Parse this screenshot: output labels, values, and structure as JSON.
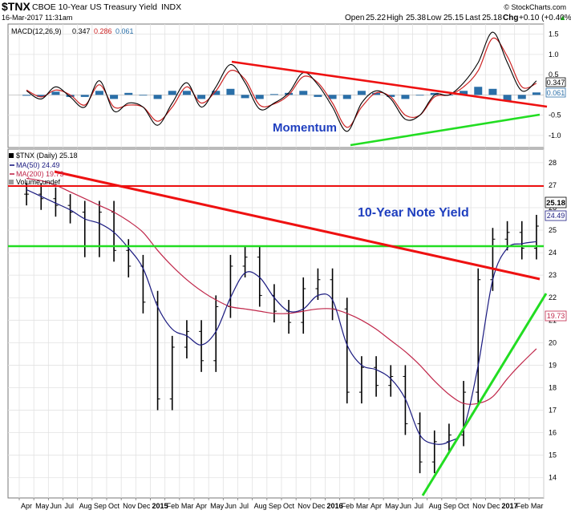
{
  "header": {
    "ticker": "$TNX",
    "name": "CBOE 10-Year US Treasury Yield",
    "exchange": "INDX",
    "date": "16-Mar-2017 11:31am",
    "watermark": "© StockCharts.com",
    "open_label": "Open",
    "open": "25.22",
    "high_label": "High",
    "high": "25.38",
    "low_label": "Low",
    "low": "25.15",
    "last_label": "Last",
    "last": "25.18",
    "chg_label": "Chg",
    "chg": "+0.10 (+0.40%)",
    "up_arrow": "▲"
  },
  "macd_panel": {
    "legend_label": "MACD(12,26,9)",
    "macd_value": "0.347",
    "signal_value": "0.286",
    "hist_value": "0.061",
    "annotation": "Momentum",
    "ylim": [
      -1.3,
      1.75
    ],
    "yticks": [
      "1.5",
      "1.0",
      "0.5",
      "-0.5",
      "-1.0"
    ],
    "ytick_values": [
      1.5,
      1.0,
      0.5,
      -0.5,
      -1.0
    ],
    "last_badges": [
      "0.347",
      "0.061"
    ]
  },
  "price_panel": {
    "legend_title": "$TNX (Daily) 25.18",
    "ma50_label": "MA(50) 24.49",
    "ma200_label": "MA(200) 19.73",
    "volume_label": "Volume undef",
    "annotation": "10-Year Note Yield",
    "ylim": [
      13.1,
      28.6
    ],
    "yticks": [
      "28",
      "27",
      "26",
      "25",
      "24",
      "23",
      "22",
      "21",
      "20",
      "19",
      "18",
      "17",
      "16",
      "15",
      "14"
    ],
    "ytick_values": [
      28,
      27,
      26,
      25,
      24,
      23,
      22,
      21,
      20,
      19,
      18,
      17,
      16,
      15,
      14
    ],
    "last_badges": [
      "25.18",
      "24.49",
      "19.73"
    ]
  },
  "x_axis": {
    "labels": [
      "Apr",
      "May",
      "Jun",
      "Jul",
      "Aug",
      "Sep",
      "Oct",
      "Nov",
      "Dec",
      "2015",
      "Feb",
      "Mar",
      "Apr",
      "May",
      "Jun",
      "Jul",
      "Aug",
      "Sep",
      "Oct",
      "Nov",
      "Dec",
      "2016",
      "Feb",
      "Mar",
      "Apr",
      "May",
      "Jun",
      "Jul",
      "Aug",
      "Sep",
      "Oct",
      "Nov",
      "Dec",
      "2017",
      "Feb",
      "Mar"
    ],
    "year_labels": [
      "2015",
      "2016",
      "2017"
    ]
  },
  "colors": {
    "price_bars": "#000000",
    "ma50": "#1a1a80",
    "ma200": "#c0274a",
    "macd_line": "#000000",
    "signal_line": "#cc2222",
    "histogram": "#2a6fa8",
    "trend_red": "#ee1111",
    "trend_green": "#22dd22",
    "annotation": "#1f3fbf"
  },
  "chart_data": [
    {
      "type": "line",
      "panel": "price",
      "title": "$TNX (Daily) 25.18",
      "xlabel": "",
      "ylabel": "",
      "ylim": [
        13.1,
        28.6
      ],
      "x": [
        "2014-04",
        "2014-05",
        "2014-06",
        "2014-07",
        "2014-08",
        "2014-09",
        "2014-10",
        "2014-11",
        "2014-12",
        "2015-01",
        "2015-02",
        "2015-03",
        "2015-04",
        "2015-05",
        "2015-06",
        "2015-07",
        "2015-08",
        "2015-09",
        "2015-10",
        "2015-11",
        "2015-12",
        "2016-01",
        "2016-02",
        "2016-03",
        "2016-04",
        "2016-05",
        "2016-06",
        "2016-07",
        "2016-08",
        "2016-09",
        "2016-10",
        "2016-11",
        "2016-12",
        "2017-01",
        "2017-02",
        "2017-03"
      ],
      "series": [
        {
          "name": "$TNX",
          "values": [
            26.6,
            26.4,
            26.1,
            25.8,
            24.3,
            25.8,
            24.1,
            23.4,
            21.8,
            17.5,
            19.8,
            20.5,
            19.2,
            21.6,
            23.4,
            23.8,
            22.1,
            21.4,
            20.9,
            22.4,
            22.8,
            21.5,
            17.8,
            18.9,
            18.1,
            18.5,
            16.4,
            14.7,
            15.6,
            15.9,
            17.8,
            22.8,
            24.6,
            24.9,
            24.2,
            25.18
          ]
        },
        {
          "name": "MA(50)",
          "values": [
            26.8,
            26.5,
            26.2,
            25.9,
            25.5,
            25.3,
            24.9,
            24.2,
            23.3,
            21.6,
            20.6,
            20.3,
            19.9,
            20.5,
            22.0,
            23.1,
            22.9,
            22.0,
            21.4,
            21.5,
            22.1,
            21.9,
            19.9,
            19.0,
            18.8,
            18.4,
            17.5,
            15.9,
            15.5,
            15.6,
            16.2,
            19.0,
            22.8,
            24.2,
            24.4,
            24.49
          ]
        },
        {
          "name": "MA(200)",
          "values": [
            27.3,
            27.2,
            27.0,
            26.7,
            26.4,
            26.1,
            25.8,
            25.4,
            24.9,
            24.1,
            23.4,
            22.8,
            22.3,
            21.9,
            21.6,
            21.5,
            21.4,
            21.3,
            21.3,
            21.4,
            21.5,
            21.5,
            21.3,
            21.0,
            20.6,
            20.1,
            19.6,
            19.0,
            18.3,
            17.7,
            17.3,
            17.3,
            17.6,
            18.4,
            19.1,
            19.73
          ]
        }
      ]
    },
    {
      "type": "line",
      "panel": "macd",
      "title": "MACD(12,26,9)",
      "xlabel": "",
      "ylabel": "",
      "ylim": [
        -1.3,
        1.75
      ],
      "x": [
        "2014-04",
        "2014-05",
        "2014-06",
        "2014-07",
        "2014-08",
        "2014-09",
        "2014-10",
        "2014-11",
        "2014-12",
        "2015-01",
        "2015-02",
        "2015-03",
        "2015-04",
        "2015-05",
        "2015-06",
        "2015-07",
        "2015-08",
        "2015-09",
        "2015-10",
        "2015-11",
        "2015-12",
        "2016-01",
        "2016-02",
        "2016-03",
        "2016-04",
        "2016-05",
        "2016-06",
        "2016-07",
        "2016-08",
        "2016-09",
        "2016-10",
        "2016-11",
        "2016-12",
        "2017-01",
        "2017-02",
        "2017-03"
      ],
      "series": [
        {
          "name": "MACD",
          "values": [
            0.1,
            -0.1,
            0.2,
            -0.05,
            -0.3,
            0.35,
            -0.4,
            -0.2,
            -0.3,
            -0.75,
            -0.2,
            0.3,
            -0.3,
            0.2,
            0.75,
            0.3,
            -0.35,
            -0.2,
            0.05,
            0.55,
            0.25,
            -0.3,
            -0.9,
            -0.2,
            0.1,
            -0.1,
            -0.6,
            -0.5,
            0.0,
            0.0,
            0.3,
            0.8,
            1.55,
            0.8,
            0.1,
            0.347
          ]
        },
        {
          "name": "Signal",
          "values": [
            0.12,
            -0.05,
            0.12,
            0.0,
            -0.25,
            0.25,
            -0.3,
            -0.25,
            -0.3,
            -0.65,
            -0.3,
            0.2,
            -0.2,
            0.1,
            0.6,
            0.38,
            -0.25,
            -0.22,
            0.0,
            0.45,
            0.3,
            -0.2,
            -0.8,
            -0.3,
            0.05,
            -0.05,
            -0.5,
            -0.5,
            -0.05,
            0.0,
            0.2,
            0.6,
            1.4,
            0.95,
            0.2,
            0.286
          ]
        },
        {
          "name": "Histogram",
          "values": [
            -0.02,
            -0.05,
            0.08,
            -0.05,
            -0.05,
            0.1,
            -0.1,
            0.05,
            0.0,
            -0.1,
            0.1,
            0.1,
            -0.1,
            0.1,
            0.15,
            -0.08,
            -0.1,
            0.02,
            0.05,
            0.1,
            -0.05,
            -0.1,
            -0.1,
            0.1,
            0.05,
            -0.05,
            -0.1,
            0.0,
            0.05,
            0.0,
            0.1,
            0.2,
            0.15,
            -0.15,
            -0.1,
            0.061
          ]
        }
      ]
    }
  ]
}
